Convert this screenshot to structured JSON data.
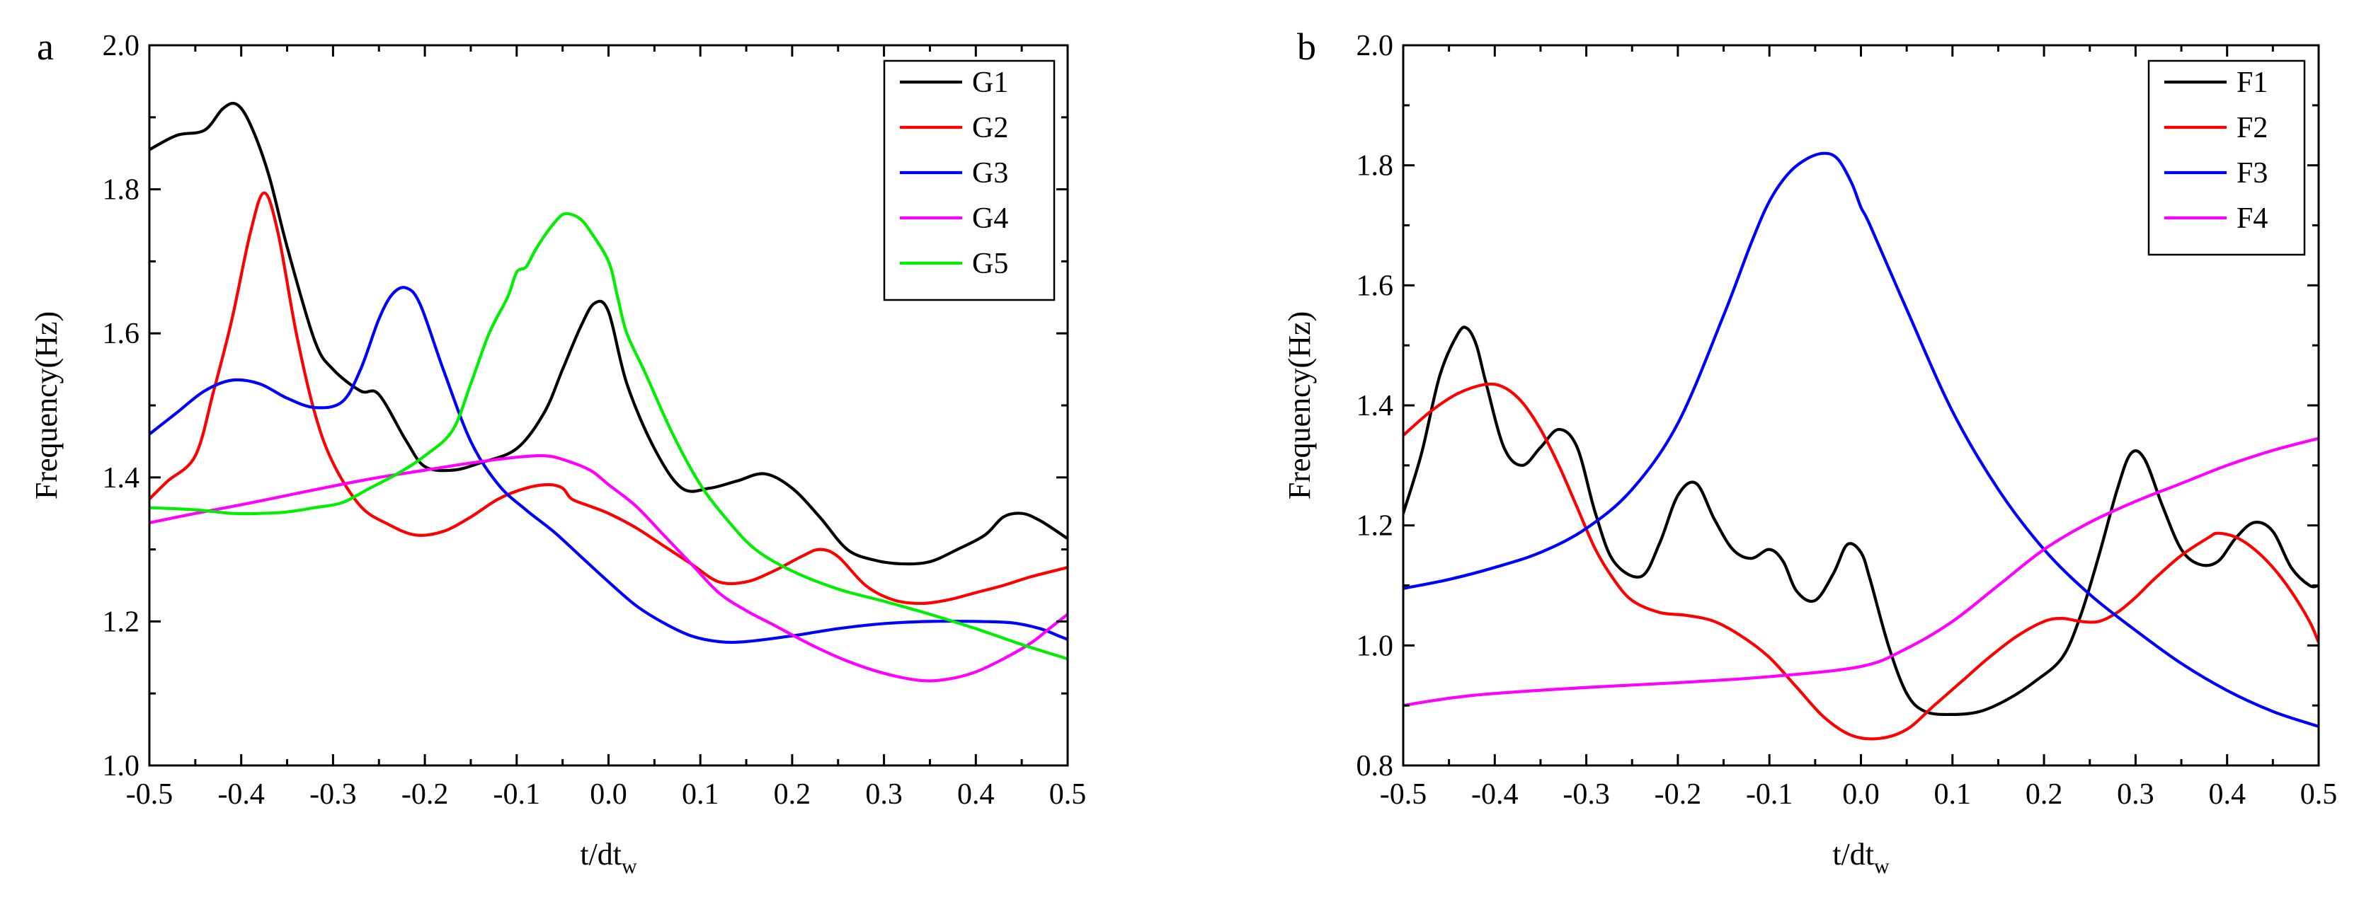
{
  "chart_data": [
    {
      "panel_label": "a",
      "type": "line",
      "title": "",
      "xlabel": "t/dt",
      "xlabel_sub": "w",
      "ylabel": "Frequency(Hz)",
      "xlim": [
        -0.5,
        0.5
      ],
      "ylim": [
        1.0,
        2.0
      ],
      "xticks": [
        -0.5,
        -0.4,
        -0.3,
        -0.2,
        -0.1,
        0.0,
        0.1,
        0.2,
        0.3,
        0.4,
        0.5
      ],
      "xtick_labels": [
        "-0.5",
        "-0.4",
        "-0.3",
        "-0.2",
        "-0.1",
        "0.0",
        "0.1",
        "0.2",
        "0.3",
        "0.4",
        "0.5"
      ],
      "yticks": [
        1.0,
        1.2,
        1.4,
        1.6,
        1.8,
        2.0
      ],
      "ytick_labels": [
        "1.0",
        "1.2",
        "1.4",
        "1.6",
        "1.8",
        "2.0"
      ],
      "grid": false,
      "legend_position": "top-right",
      "series": [
        {
          "name": "G1",
          "color": "#000000",
          "x": [
            -0.5,
            -0.47,
            -0.44,
            -0.42,
            -0.405,
            -0.39,
            -0.37,
            -0.35,
            -0.32,
            -0.3,
            -0.27,
            -0.25,
            -0.22,
            -0.2,
            -0.17,
            -0.14,
            -0.1,
            -0.07,
            -0.05,
            -0.03,
            -0.015,
            0.0,
            0.02,
            0.05,
            0.08,
            0.11,
            0.14,
            0.17,
            0.2,
            0.23,
            0.26,
            0.29,
            0.32,
            0.35,
            0.38,
            0.41,
            0.43,
            0.45,
            0.47,
            0.5
          ],
          "y": [
            1.855,
            1.875,
            1.882,
            1.912,
            1.918,
            1.89,
            1.82,
            1.72,
            1.59,
            1.55,
            1.52,
            1.515,
            1.45,
            1.415,
            1.41,
            1.42,
            1.44,
            1.49,
            1.55,
            1.61,
            1.642,
            1.63,
            1.53,
            1.44,
            1.385,
            1.385,
            1.395,
            1.405,
            1.385,
            1.345,
            1.3,
            1.285,
            1.28,
            1.283,
            1.3,
            1.32,
            1.345,
            1.35,
            1.34,
            1.315
          ]
        },
        {
          "name": "G2",
          "color": "#ff0000",
          "x": [
            -0.5,
            -0.48,
            -0.45,
            -0.43,
            -0.41,
            -0.39,
            -0.375,
            -0.36,
            -0.34,
            -0.32,
            -0.3,
            -0.27,
            -0.24,
            -0.21,
            -0.18,
            -0.15,
            -0.12,
            -0.09,
            -0.065,
            -0.05,
            -0.04,
            -0.02,
            0.0,
            0.03,
            0.06,
            0.09,
            0.12,
            0.15,
            0.18,
            0.21,
            0.23,
            0.25,
            0.28,
            0.31,
            0.34,
            0.37,
            0.4,
            0.43,
            0.46,
            0.5
          ],
          "y": [
            1.37,
            1.395,
            1.43,
            1.52,
            1.62,
            1.74,
            1.795,
            1.74,
            1.6,
            1.49,
            1.42,
            1.36,
            1.335,
            1.32,
            1.325,
            1.345,
            1.37,
            1.385,
            1.39,
            1.385,
            1.37,
            1.36,
            1.35,
            1.33,
            1.305,
            1.28,
            1.255,
            1.255,
            1.27,
            1.29,
            1.3,
            1.29,
            1.25,
            1.23,
            1.225,
            1.23,
            1.24,
            1.25,
            1.262,
            1.275
          ]
        },
        {
          "name": "G3",
          "color": "#0000ff",
          "x": [
            -0.5,
            -0.47,
            -0.44,
            -0.41,
            -0.38,
            -0.35,
            -0.32,
            -0.29,
            -0.27,
            -0.25,
            -0.235,
            -0.22,
            -0.205,
            -0.18,
            -0.15,
            -0.12,
            -0.09,
            -0.06,
            -0.03,
            0.0,
            0.03,
            0.06,
            0.09,
            0.12,
            0.15,
            0.2,
            0.25,
            0.3,
            0.35,
            0.4,
            0.44,
            0.47,
            0.49,
            0.5
          ],
          "y": [
            1.46,
            1.49,
            1.52,
            1.535,
            1.53,
            1.51,
            1.497,
            1.505,
            1.55,
            1.62,
            1.655,
            1.663,
            1.64,
            1.55,
            1.45,
            1.39,
            1.355,
            1.325,
            1.29,
            1.255,
            1.222,
            1.198,
            1.18,
            1.172,
            1.172,
            1.18,
            1.19,
            1.197,
            1.2,
            1.2,
            1.198,
            1.19,
            1.18,
            1.175
          ]
        },
        {
          "name": "G4",
          "color": "#ff00ff",
          "x": [
            -0.5,
            -0.45,
            -0.4,
            -0.35,
            -0.3,
            -0.25,
            -0.2,
            -0.15,
            -0.1,
            -0.07,
            -0.05,
            -0.02,
            0.0,
            0.03,
            0.06,
            0.09,
            0.12,
            0.15,
            0.18,
            0.22,
            0.26,
            0.3,
            0.34,
            0.37,
            0.4,
            0.43,
            0.46,
            0.48,
            0.5
          ],
          "y": [
            1.337,
            1.35,
            1.362,
            1.375,
            1.388,
            1.4,
            1.41,
            1.42,
            1.428,
            1.43,
            1.425,
            1.41,
            1.39,
            1.36,
            1.32,
            1.28,
            1.24,
            1.215,
            1.195,
            1.168,
            1.145,
            1.128,
            1.118,
            1.12,
            1.13,
            1.148,
            1.17,
            1.19,
            1.21
          ]
        },
        {
          "name": "G5",
          "color": "#00ee00",
          "x": [
            -0.5,
            -0.45,
            -0.41,
            -0.38,
            -0.35,
            -0.32,
            -0.29,
            -0.26,
            -0.23,
            -0.2,
            -0.17,
            -0.15,
            -0.13,
            -0.11,
            -0.1,
            -0.09,
            -0.08,
            -0.07,
            -0.06,
            -0.05,
            -0.04,
            -0.03,
            -0.02,
            0.0,
            0.01,
            0.02,
            0.04,
            0.07,
            0.1,
            0.13,
            0.16,
            0.2,
            0.25,
            0.3,
            0.35,
            0.4,
            0.45,
            0.5
          ],
          "y": [
            1.358,
            1.355,
            1.35,
            1.35,
            1.352,
            1.358,
            1.365,
            1.385,
            1.405,
            1.43,
            1.465,
            1.53,
            1.6,
            1.65,
            1.685,
            1.692,
            1.715,
            1.735,
            1.752,
            1.765,
            1.765,
            1.758,
            1.742,
            1.7,
            1.65,
            1.6,
            1.545,
            1.46,
            1.39,
            1.34,
            1.3,
            1.27,
            1.245,
            1.228,
            1.21,
            1.19,
            1.168,
            1.148
          ]
        }
      ]
    },
    {
      "panel_label": "b",
      "type": "line",
      "title": "",
      "xlabel": "t/dt",
      "xlabel_sub": "w",
      "ylabel": "Frequency(Hz)",
      "xlim": [
        -0.5,
        0.5
      ],
      "ylim": [
        0.8,
        2.0
      ],
      "xticks": [
        -0.5,
        -0.4,
        -0.3,
        -0.2,
        -0.1,
        0.0,
        0.1,
        0.2,
        0.3,
        0.4,
        0.5
      ],
      "xtick_labels": [
        "-0.5",
        "-0.4",
        "-0.3",
        "-0.2",
        "-0.1",
        "0.0",
        "0.1",
        "0.2",
        "0.3",
        "0.4",
        "0.5"
      ],
      "yticks": [
        0.8,
        1.0,
        1.2,
        1.4,
        1.6,
        1.8,
        2.0
      ],
      "ytick_labels": [
        "0.8",
        "1.0",
        "1.2",
        "1.4",
        "1.6",
        "1.8",
        "2.0"
      ],
      "grid": false,
      "legend_position": "top-right",
      "series": [
        {
          "name": "F1",
          "color": "#000000",
          "x": [
            -0.5,
            -0.48,
            -0.46,
            -0.44,
            -0.43,
            -0.42,
            -0.41,
            -0.39,
            -0.37,
            -0.35,
            -0.33,
            -0.31,
            -0.29,
            -0.27,
            -0.24,
            -0.22,
            -0.2,
            -0.18,
            -0.16,
            -0.14,
            -0.12,
            -0.1,
            -0.085,
            -0.07,
            -0.05,
            -0.03,
            -0.015,
            0.0,
            0.01,
            0.03,
            0.05,
            0.07,
            0.1,
            0.13,
            0.16,
            0.19,
            0.22,
            0.24,
            0.26,
            0.28,
            0.295,
            0.31,
            0.33,
            0.35,
            0.37,
            0.39,
            0.41,
            0.43,
            0.45,
            0.47,
            0.49,
            0.5
          ],
          "y": [
            1.22,
            1.32,
            1.45,
            1.52,
            1.528,
            1.5,
            1.44,
            1.33,
            1.3,
            1.33,
            1.36,
            1.33,
            1.22,
            1.14,
            1.115,
            1.17,
            1.25,
            1.27,
            1.21,
            1.16,
            1.145,
            1.16,
            1.14,
            1.09,
            1.075,
            1.12,
            1.168,
            1.155,
            1.11,
            1.0,
            0.92,
            0.89,
            0.885,
            0.89,
            0.91,
            0.94,
            0.98,
            1.05,
            1.15,
            1.26,
            1.32,
            1.31,
            1.23,
            1.16,
            1.135,
            1.14,
            1.18,
            1.205,
            1.19,
            1.13,
            1.1,
            1.1
          ]
        },
        {
          "name": "F2",
          "color": "#ff0000",
          "x": [
            -0.5,
            -0.47,
            -0.44,
            -0.41,
            -0.39,
            -0.37,
            -0.35,
            -0.33,
            -0.31,
            -0.29,
            -0.27,
            -0.25,
            -0.22,
            -0.19,
            -0.16,
            -0.13,
            -0.1,
            -0.07,
            -0.04,
            -0.01,
            0.02,
            0.05,
            0.08,
            0.11,
            0.14,
            0.17,
            0.2,
            0.22,
            0.24,
            0.26,
            0.28,
            0.3,
            0.32,
            0.35,
            0.38,
            0.39,
            0.41,
            0.43,
            0.45,
            0.47,
            0.49,
            0.5
          ],
          "y": [
            1.35,
            1.39,
            1.42,
            1.435,
            1.43,
            1.405,
            1.36,
            1.3,
            1.23,
            1.16,
            1.11,
            1.075,
            1.055,
            1.05,
            1.04,
            1.015,
            0.98,
            0.93,
            0.88,
            0.85,
            0.845,
            0.86,
            0.9,
            0.94,
            0.98,
            1.015,
            1.04,
            1.045,
            1.04,
            1.04,
            1.055,
            1.08,
            1.11,
            1.15,
            1.18,
            1.187,
            1.18,
            1.16,
            1.13,
            1.09,
            1.04,
            1.005
          ]
        },
        {
          "name": "F3",
          "color": "#0000ff",
          "x": [
            -0.5,
            -0.45,
            -0.4,
            -0.35,
            -0.3,
            -0.25,
            -0.2,
            -0.15,
            -0.12,
            -0.1,
            -0.08,
            -0.06,
            -0.04,
            -0.025,
            -0.01,
            0.0,
            0.01,
            0.05,
            0.1,
            0.15,
            0.2,
            0.25,
            0.3,
            0.35,
            0.4,
            0.45,
            0.5
          ],
          "y": [
            1.095,
            1.11,
            1.13,
            1.155,
            1.195,
            1.26,
            1.37,
            1.55,
            1.67,
            1.74,
            1.785,
            1.81,
            1.82,
            1.81,
            1.77,
            1.73,
            1.7,
            1.56,
            1.39,
            1.26,
            1.16,
            1.085,
            1.025,
            0.97,
            0.925,
            0.89,
            0.865
          ]
        },
        {
          "name": "F4",
          "color": "#ff00ff",
          "x": [
            -0.5,
            -0.45,
            -0.4,
            -0.3,
            -0.2,
            -0.1,
            0.0,
            0.05,
            0.1,
            0.15,
            0.2,
            0.25,
            0.3,
            0.35,
            0.4,
            0.45,
            0.5
          ],
          "y": [
            0.9,
            0.912,
            0.92,
            0.93,
            0.938,
            0.948,
            0.965,
            0.995,
            1.04,
            1.1,
            1.16,
            1.205,
            1.24,
            1.27,
            1.3,
            1.325,
            1.345
          ]
        }
      ]
    }
  ]
}
